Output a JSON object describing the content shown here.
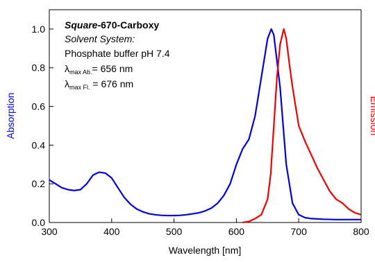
{
  "chart_data": {
    "type": "line",
    "xlabel": "Wavelength [nm]",
    "ylabel": "Absorption",
    "y2label": "Emission",
    "xlim": [
      300,
      800
    ],
    "xticks": [
      300,
      400,
      500,
      600,
      700,
      800
    ],
    "ylim": [
      0,
      1.1
    ],
    "yticks": [
      {
        "value": 0,
        "label": "0.0"
      },
      0.2,
      0.4,
      0.6,
      0.8,
      {
        "value": 1,
        "label": "1.0"
      }
    ],
    "y2lim": [
      0,
      1.1
    ],
    "annotation": {
      "name_italic": "Square",
      "name_rest": "-670-Carboxy",
      "solvent_label": "Solvent System:",
      "solvent": "Phosphate buffer pH 7.4",
      "lambda_abs": "λ",
      "abs_sub": "max Ab.",
      "abs_value": "= 656 nm",
      "lambda_fl": "λ",
      "fl_sub": "max Fl.",
      "fl_value": " = 676 nm"
    },
    "series": [
      {
        "color": "#0000dd",
        "axis": "y",
        "x": [
          300,
          310,
          320,
          330,
          340,
          350,
          360,
          370,
          380,
          390,
          400,
          410,
          420,
          430,
          440,
          450,
          460,
          470,
          480,
          490,
          500,
          510,
          520,
          530,
          540,
          550,
          560,
          570,
          580,
          590,
          600,
          610,
          620,
          630,
          640,
          650,
          656,
          660,
          670,
          680,
          690,
          700,
          710,
          720,
          740,
          760,
          800
        ],
        "values": [
          0.22,
          0.2,
          0.18,
          0.17,
          0.165,
          0.17,
          0.2,
          0.245,
          0.26,
          0.255,
          0.23,
          0.18,
          0.13,
          0.095,
          0.07,
          0.055,
          0.045,
          0.04,
          0.037,
          0.036,
          0.036,
          0.037,
          0.04,
          0.045,
          0.05,
          0.06,
          0.075,
          0.1,
          0.14,
          0.2,
          0.3,
          0.38,
          0.43,
          0.55,
          0.75,
          0.95,
          1.0,
          0.97,
          0.7,
          0.3,
          0.1,
          0.04,
          0.025,
          0.02,
          0.017,
          0.015,
          0.015
        ]
      },
      {
        "color": "#ee0000",
        "axis": "y2",
        "x": [
          610,
          620,
          630,
          640,
          650,
          655,
          660,
          665,
          670,
          676,
          680,
          685,
          690,
          700,
          710,
          720,
          730,
          740,
          750,
          760,
          770,
          780,
          790,
          800
        ],
        "values": [
          0.0,
          0.005,
          0.02,
          0.04,
          0.12,
          0.25,
          0.5,
          0.75,
          0.92,
          1.0,
          0.95,
          0.82,
          0.7,
          0.5,
          0.42,
          0.35,
          0.28,
          0.22,
          0.16,
          0.12,
          0.1,
          0.07,
          0.05,
          0.04
        ]
      }
    ]
  }
}
